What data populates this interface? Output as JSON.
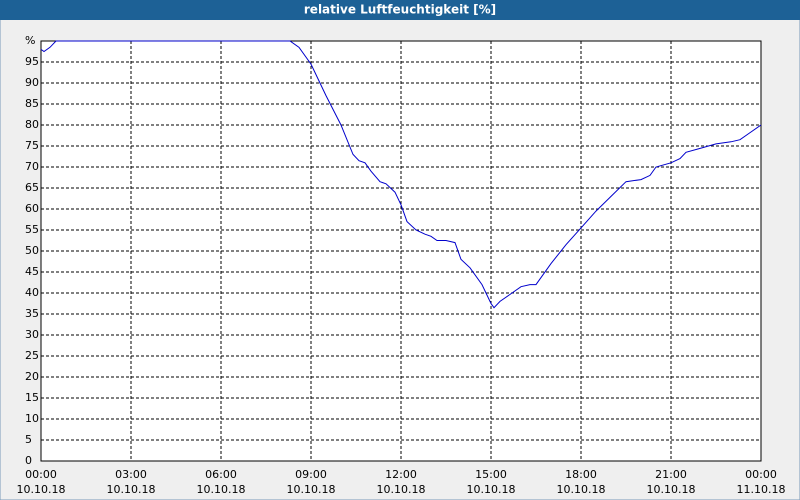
{
  "chart_data": {
    "type": "line",
    "title": "relative Luftfeuchtigkeit [%]",
    "x": [
      0,
      0.1,
      0.3,
      0.5,
      1,
      2,
      4,
      6,
      8,
      8.3,
      8.6,
      9,
      9.5,
      10,
      10.4,
      10.6,
      10.8,
      11,
      11.3,
      11.5,
      11.8,
      12,
      12.2,
      12.5,
      12.8,
      13,
      13.2,
      13.5,
      13.8,
      14,
      14.3,
      14.7,
      15,
      15.1,
      15.3,
      15.6,
      16,
      16.3,
      16.5,
      17,
      17.5,
      18,
      18.5,
      19,
      19.5,
      20,
      20.3,
      20.5,
      21,
      21.3,
      21.5,
      22,
      22.5,
      23,
      23.3,
      23.6,
      24
    ],
    "series": [
      {
        "color": "#0000cc",
        "values": [
          98,
          97.5,
          98.5,
          100,
          100,
          100,
          100,
          100,
          100,
          100,
          98.5,
          94.5,
          87,
          80,
          73,
          71.5,
          71,
          69,
          66.5,
          66,
          64,
          61,
          57,
          55,
          54,
          53.5,
          52.5,
          52.5,
          52,
          48,
          46,
          42,
          37.5,
          36.5,
          38,
          39.5,
          41.5,
          42,
          42,
          47,
          51.5,
          55.5,
          59.5,
          63,
          66.5,
          67,
          68,
          70,
          71,
          72,
          73.5,
          74.5,
          75.5,
          76,
          76.5,
          78,
          80
        ]
      }
    ],
    "xlim": [
      0,
      24
    ],
    "xticks": [
      {
        "value": 0,
        "label": "00:00"
      },
      {
        "value": 3,
        "label": "03:00"
      },
      {
        "value": 6,
        "label": "06:00"
      },
      {
        "value": 9,
        "label": "09:00"
      },
      {
        "value": 12,
        "label": "12:00"
      },
      {
        "value": 15,
        "label": "15:00"
      },
      {
        "value": 18,
        "label": "18:00"
      },
      {
        "value": 21,
        "label": "21:00"
      },
      {
        "value": 24,
        "label": "00:00"
      }
    ],
    "xtick_dates": [
      "10.10.18",
      "10.10.18",
      "10.10.18",
      "10.10.18",
      "10.10.18",
      "10.10.18",
      "10.10.18",
      "10.10.18",
      "11.10.18"
    ],
    "ylim": [
      0,
      100
    ],
    "yticks": [
      0,
      5,
      10,
      15,
      20,
      25,
      30,
      35,
      40,
      45,
      50,
      55,
      60,
      65,
      70,
      75,
      80,
      85,
      90,
      95,
      {
        "value": 100,
        "label": "%"
      }
    ],
    "grid": true
  }
}
